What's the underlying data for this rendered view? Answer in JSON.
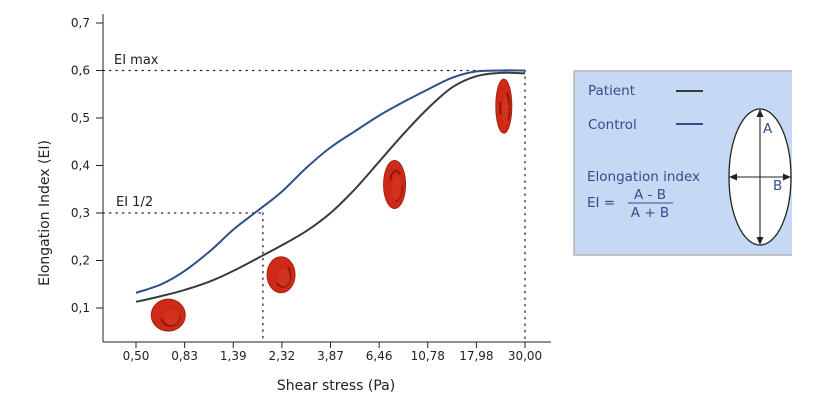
{
  "chart_data": {
    "type": "line",
    "xlabel": "Shear stress (Pa)",
    "ylabel": "Elongation Index (EI)",
    "ylim": [
      0.05,
      0.7
    ],
    "y_ticks": [
      "0,1",
      "0,2",
      "0,3",
      "0,4",
      "0,5",
      "0,6",
      "0,7"
    ],
    "x_ticks": [
      "0,50",
      "0,83",
      "1,39",
      "2,32",
      "3,87",
      "6,46",
      "10,78",
      "17,98",
      "30,00"
    ],
    "x_values": [
      0.5,
      0.83,
      1.39,
      2.32,
      3.87,
      6.46,
      10.78,
      17.98,
      30.0
    ],
    "series": [
      {
        "name": "Patient",
        "color": "#333d3a",
        "x": [
          0.5,
          0.65,
          0.83,
          1.1,
          1.39,
          1.8,
          2.32,
          3.0,
          3.87,
          5.0,
          6.46,
          8.3,
          10.78,
          14.0,
          17.98,
          23.0,
          30.0
        ],
        "y": [
          0.113,
          0.125,
          0.138,
          0.157,
          0.178,
          0.205,
          0.232,
          0.262,
          0.3,
          0.35,
          0.408,
          0.465,
          0.52,
          0.565,
          0.588,
          0.595,
          0.594
        ]
      },
      {
        "name": "Control",
        "color": "#2f4f88",
        "x": [
          0.5,
          0.65,
          0.83,
          1.1,
          1.39,
          1.8,
          2.32,
          3.0,
          3.87,
          5.0,
          6.46,
          8.3,
          10.78,
          14.0,
          17.98,
          23.0,
          30.0
        ],
        "y": [
          0.132,
          0.15,
          0.178,
          0.222,
          0.265,
          0.305,
          0.345,
          0.395,
          0.438,
          0.472,
          0.505,
          0.533,
          0.56,
          0.585,
          0.598,
          0.6,
          0.6
        ]
      }
    ],
    "annotations": {
      "ei_max_label": "EI max",
      "ei_max_value": 0.6,
      "ei_max_x": 30.0,
      "ei_half_label": "EI 1/2",
      "ei_half_value": 0.3,
      "ei_half_x": 1.9
    },
    "cells": [
      {
        "x": 0.7,
        "y": 0.085,
        "shape": "disc"
      },
      {
        "x": 2.3,
        "y": 0.17,
        "shape": "slight-oval"
      },
      {
        "x": 7.6,
        "y": 0.36,
        "shape": "oval"
      },
      {
        "x": 24.0,
        "y": 0.525,
        "shape": "elongated"
      }
    ],
    "cell_color": "#cf2a17"
  },
  "legend": {
    "items": [
      {
        "label": "Patient",
        "color": "#333d3a"
      },
      {
        "label": "Control",
        "color": "#2f4f88"
      }
    ],
    "ei_title": "Elongation index",
    "formula_lhs": "EI =",
    "numerator": "A - B",
    "denominator": "A + B",
    "label_a": "A",
    "label_b": "B",
    "background": "#c5d9f5",
    "border": "#b3b3b3"
  }
}
